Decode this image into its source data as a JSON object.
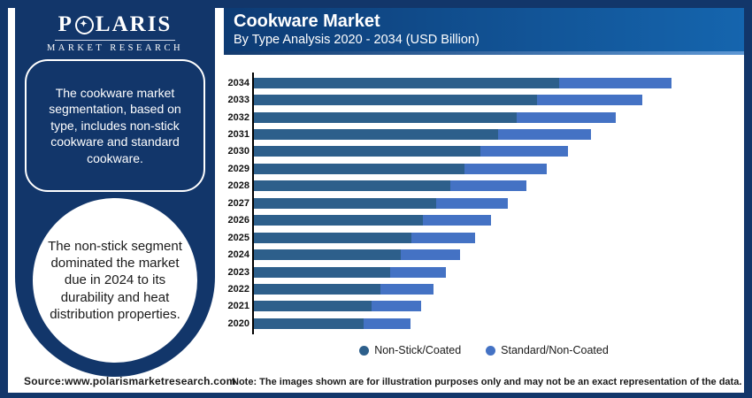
{
  "brand": {
    "name": "POLARIS",
    "name_before_o": "P",
    "name_after_o": "LARIS",
    "subtitle": "MARKET RESEARCH"
  },
  "header": {
    "title": "Cookware Market",
    "subtitle": "By Type Analysis 2020 - 2034 (USD Billion)"
  },
  "sidebar": {
    "box_text": "The cookware market segmentation, based on type, includes non-stick cookware and standard cookware.",
    "circle_text": "The non-stick segment dominated the market due in 2024 to its durability and heat distribution properties."
  },
  "footer": {
    "source": "Source:www.polarismarketresearch.com",
    "note": "Note: The images shown are for illustration purposes only and may not be an exact representation of the data."
  },
  "colors": {
    "navy": "#12366A",
    "header_gradient_left": "#0D3B74",
    "header_gradient_right": "#1565AE",
    "bar_dark": "#2D5F8B",
    "bar_light": "#4472C4",
    "text_dark": "#1A1A1A",
    "white": "#FFFFFF"
  },
  "chart_data": {
    "type": "bar",
    "orientation": "horizontal",
    "stacked": true,
    "title": "Cookware Market",
    "subtitle": "By Type Analysis 2020 - 2034 (USD Billion)",
    "value_axis_labels_shown": false,
    "units": "USD Billion (no numeric axis labels shown; values are relative bar lengths in px)",
    "legend_position": "bottom",
    "categories_top_to_bottom": [
      "2034",
      "2033",
      "2032",
      "2031",
      "2030",
      "2029",
      "2028",
      "2027",
      "2026",
      "2025",
      "2024",
      "2023",
      "2022",
      "2021",
      "2020"
    ],
    "series": [
      {
        "name": "Non-Stick/Coated",
        "color": "#2D5F8B",
        "relative_lengths": [
          345,
          320,
          297,
          276,
          256,
          238,
          222,
          206,
          191,
          178,
          166,
          154,
          143,
          133,
          124
        ]
      },
      {
        "name": "Standard/Non-Coated",
        "color": "#4472C4",
        "relative_lengths": [
          127,
          119,
          112,
          105,
          99,
          93,
          86,
          81,
          77,
          72,
          67,
          63,
          60,
          56,
          53
        ]
      }
    ]
  }
}
